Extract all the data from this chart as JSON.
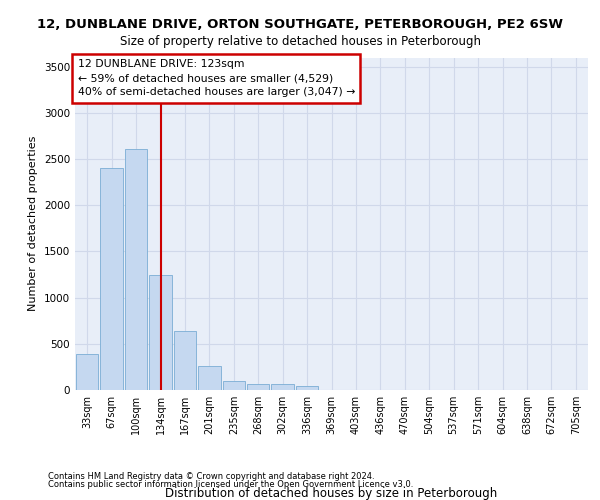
{
  "title_line1": "12, DUNBLANE DRIVE, ORTON SOUTHGATE, PETERBOROUGH, PE2 6SW",
  "title_line2": "Size of property relative to detached houses in Peterborough",
  "xlabel": "Distribution of detached houses by size in Peterborough",
  "ylabel": "Number of detached properties",
  "footnote1": "Contains HM Land Registry data © Crown copyright and database right 2024.",
  "footnote2": "Contains public sector information licensed under the Open Government Licence v3.0.",
  "categories": [
    "33sqm",
    "67sqm",
    "100sqm",
    "134sqm",
    "167sqm",
    "201sqm",
    "235sqm",
    "268sqm",
    "302sqm",
    "336sqm",
    "369sqm",
    "403sqm",
    "436sqm",
    "470sqm",
    "504sqm",
    "537sqm",
    "571sqm",
    "604sqm",
    "638sqm",
    "672sqm",
    "705sqm"
  ],
  "values": [
    390,
    2400,
    2610,
    1240,
    640,
    260,
    100,
    65,
    60,
    45,
    0,
    0,
    0,
    0,
    0,
    0,
    0,
    0,
    0,
    0,
    0
  ],
  "bar_color": "#c5d8f0",
  "bar_edge_color": "#7aadd4",
  "grid_color": "#d0d8ea",
  "background_color": "#e8eef8",
  "vline_x": 3.0,
  "vline_color": "#cc0000",
  "annotation_text": "12 DUNBLANE DRIVE: 123sqm\n← 59% of detached houses are smaller (4,529)\n40% of semi-detached houses are larger (3,047) →",
  "annotation_box_color": "#ffffff",
  "annotation_box_edge": "#cc0000",
  "ylim": [
    0,
    3600
  ],
  "yticks": [
    0,
    500,
    1000,
    1500,
    2000,
    2500,
    3000,
    3500
  ]
}
